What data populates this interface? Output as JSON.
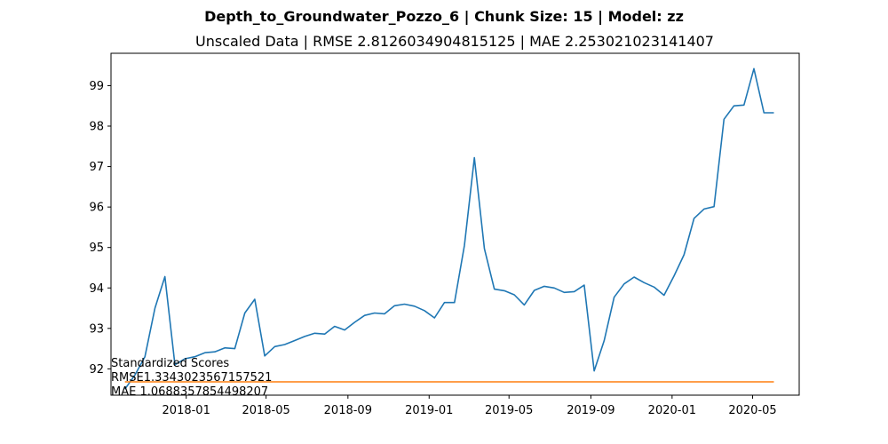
{
  "chart_data": {
    "type": "line",
    "suptitle": "Depth_to_Groundwater_Pozzo_6 | Chunk Size: 15 | Model: zz",
    "title": "Unscaled Data | RMSE 2.8126034904815125 | MAE 2.253021023141407",
    "xlabel": "",
    "ylabel": "",
    "x_ticks": [
      "2018-01",
      "2018-05",
      "2018-09",
      "2019-01",
      "2019-05",
      "2019-09",
      "2020-01",
      "2020-05"
    ],
    "y_ticks": [
      92,
      93,
      94,
      95,
      96,
      97,
      98,
      99
    ],
    "xlim": [
      "2017-09-10",
      "2020-07-10"
    ],
    "ylim": [
      91.35,
      99.8
    ],
    "grid": false,
    "annotation": [
      "Standardized Scores",
      "RMSE1.3343023567157521",
      "MAE 1.0688357854498207"
    ],
    "series": [
      {
        "color": "#1f77b4",
        "x": [
          "2017-10-01",
          "2017-10-16",
          "2017-10-31",
          "2017-11-15",
          "2017-11-30",
          "2017-12-15",
          "2017-12-30",
          "2018-01-14",
          "2018-01-29",
          "2018-02-13",
          "2018-02-28",
          "2018-03-15",
          "2018-03-30",
          "2018-04-14",
          "2018-04-29",
          "2018-05-14",
          "2018-05-29",
          "2018-06-13",
          "2018-06-28",
          "2018-07-13",
          "2018-07-28",
          "2018-08-12",
          "2018-08-27",
          "2018-09-11",
          "2018-09-26",
          "2018-10-11",
          "2018-10-26",
          "2018-11-10",
          "2018-11-25",
          "2018-12-10",
          "2018-12-25",
          "2019-01-09",
          "2019-01-24",
          "2019-02-08",
          "2019-02-23",
          "2019-03-10",
          "2019-03-25",
          "2019-04-09",
          "2019-04-24",
          "2019-05-09",
          "2019-05-24",
          "2019-06-08",
          "2019-06-23",
          "2019-07-08",
          "2019-07-23",
          "2019-08-07",
          "2019-08-22",
          "2019-09-06",
          "2019-09-21",
          "2019-10-06",
          "2019-10-21",
          "2019-11-05",
          "2019-11-20",
          "2019-12-05",
          "2019-12-20",
          "2020-01-04",
          "2020-01-19",
          "2020-02-03",
          "2020-02-18",
          "2020-03-04",
          "2020-03-19",
          "2020-04-03",
          "2020-04-18",
          "2020-05-03",
          "2020-05-18",
          "2020-06-02"
        ],
        "y": [
          91.5,
          91.85,
          92.3,
          93.5,
          94.28,
          92.1,
          92.25,
          92.3,
          92.4,
          92.42,
          92.52,
          92.5,
          93.38,
          93.72,
          92.32,
          92.55,
          92.6,
          92.7,
          92.8,
          92.88,
          92.86,
          93.05,
          92.96,
          93.15,
          93.32,
          93.38,
          93.36,
          93.56,
          93.6,
          93.55,
          93.44,
          93.26,
          93.64,
          93.64,
          95.05,
          97.22,
          94.97,
          93.97,
          93.93,
          93.83,
          93.58,
          93.94,
          94.04,
          94.0,
          93.89,
          93.91,
          94.07,
          91.95,
          92.7,
          93.77,
          94.1,
          94.27,
          94.13,
          94.02,
          93.82,
          94.3,
          94.82,
          95.72,
          95.95,
          96.01,
          98.17,
          98.5,
          98.52,
          99.42,
          98.33,
          98.33
        ]
      },
      {
        "color": "#ff7f0e",
        "x": [
          "2017-10-01",
          "2020-06-02"
        ],
        "y": [
          91.68,
          91.68
        ]
      }
    ]
  }
}
